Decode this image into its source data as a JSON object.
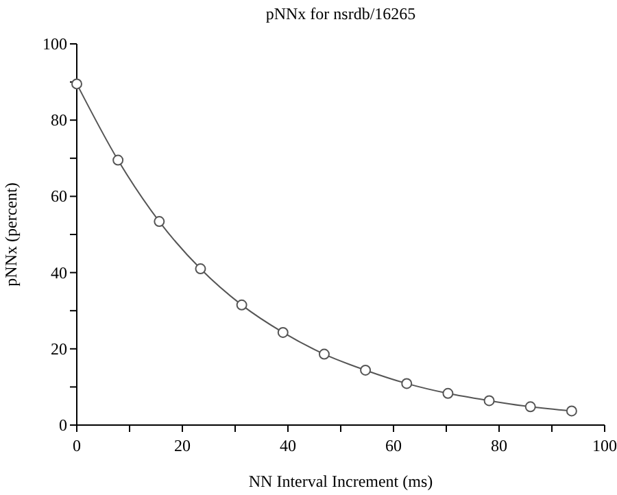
{
  "chart_data": {
    "type": "line",
    "title": "pNNx for nsrdb/16265",
    "xlabel": "NN Interval Increment (ms)",
    "ylabel": "pNNx (percent)",
    "x": [
      0,
      7.8125,
      15.625,
      23.4375,
      31.25,
      39.0625,
      46.875,
      54.6875,
      62.5,
      70.3125,
      78.125,
      85.9375,
      93.75
    ],
    "series": [
      {
        "color": "#555555",
        "values": [
          89.5,
          69.5,
          53.4,
          41.0,
          31.5,
          24.3,
          18.6,
          14.4,
          10.9,
          8.3,
          6.4,
          4.8,
          3.7
        ]
      }
    ],
    "marker": "circle",
    "line_style": "solid",
    "grid": false,
    "xlim": [
      0,
      100
    ],
    "ylim": [
      0,
      100
    ],
    "xticks": [
      0,
      {
        "value": 10,
        "label": null
      },
      20,
      {
        "value": 30,
        "label": null
      },
      40,
      {
        "value": 50,
        "label": null
      },
      60,
      {
        "value": 70,
        "label": null
      },
      80,
      {
        "value": 90,
        "label": null
      },
      100
    ],
    "yticks": [
      0,
      {
        "value": 10,
        "label": null
      },
      20,
      {
        "value": 30,
        "label": null
      },
      40,
      {
        "value": 50,
        "label": null
      },
      60,
      {
        "value": 70,
        "label": null
      },
      80,
      {
        "value": 90,
        "label": null
      },
      100
    ]
  }
}
